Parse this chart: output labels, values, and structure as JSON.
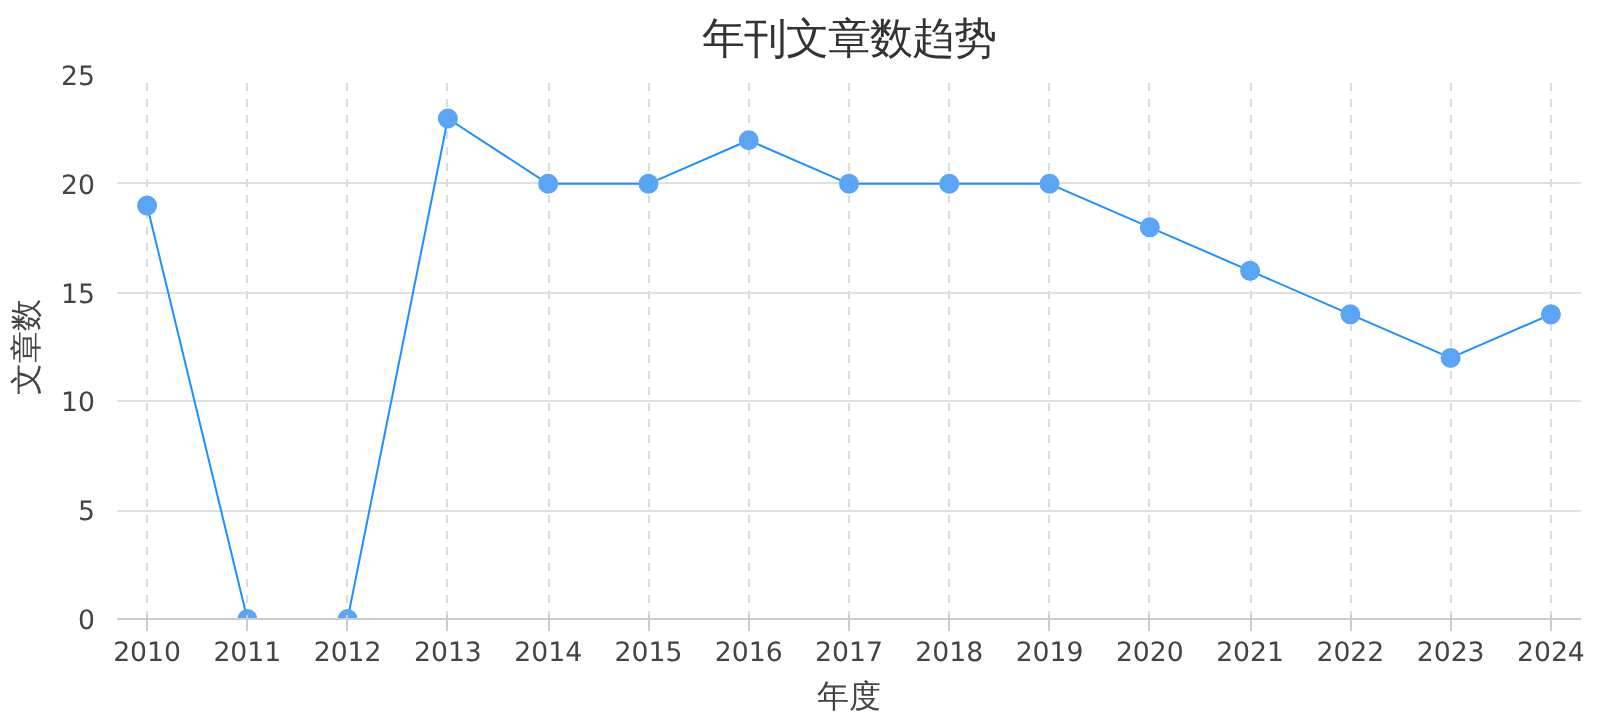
{
  "chart_data": {
    "type": "line",
    "title": "年刊文章数趋势",
    "xlabel": "年度",
    "ylabel": "文章数",
    "x": [
      2010,
      2011,
      2012,
      2013,
      2014,
      2015,
      2016,
      2017,
      2018,
      2019,
      2020,
      2021,
      2022,
      2023,
      2024
    ],
    "series": [
      {
        "color": "#1e90ff",
        "values": [
          19,
          0,
          0,
          23,
          20,
          20,
          22,
          20,
          20,
          20,
          18,
          16,
          14,
          12,
          14
        ]
      }
    ],
    "xlim": [
      2009.7,
      2024.3
    ],
    "xticks": [
      2010,
      2011,
      2012,
      2013,
      2014,
      2015,
      2016,
      2017,
      2018,
      2019,
      2020,
      2021,
      2022,
      2023,
      2024
    ],
    "ylim": [
      0,
      25
    ],
    "yticks": [
      0,
      5,
      10,
      15,
      20,
      25
    ],
    "grid": true,
    "marker": "circle",
    "line_style": "solid"
  }
}
